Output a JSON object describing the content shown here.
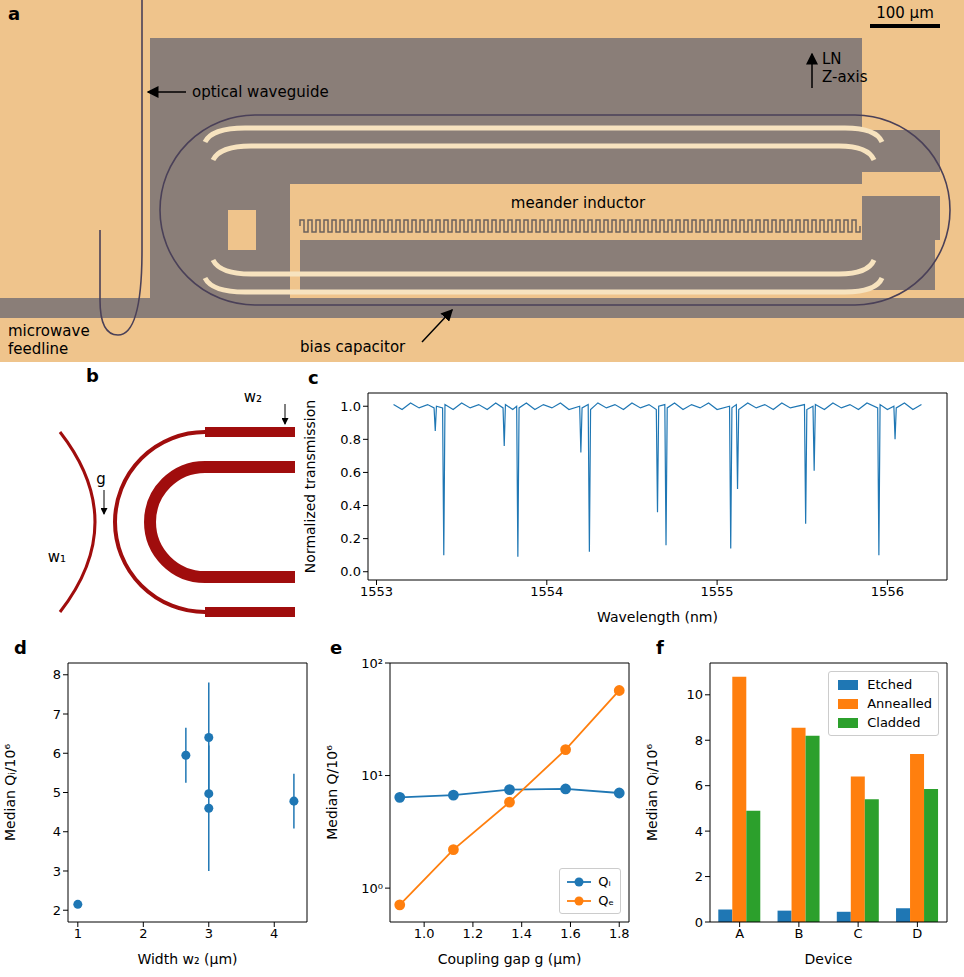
{
  "chart_data": [
    {
      "panel": "a",
      "type": "image",
      "scale_bar": "100 μm",
      "annotations": [
        "optical waveguide",
        "LN Z-axis",
        "meander inductor",
        "microwave feedline",
        "bias capacitor"
      ]
    },
    {
      "panel": "b",
      "type": "diagram",
      "annotations": [
        "g",
        "w₁",
        "w₂"
      ]
    },
    {
      "panel": "c",
      "type": "line",
      "x_label": "Wavelength (nm)",
      "y_label": "Normalized transmission",
      "color": "#1f77b4",
      "x": [
        1553.1,
        1553.15,
        1553.2,
        1553.25,
        1553.3,
        1553.338,
        1553.345,
        1553.352,
        1553.388,
        1553.395,
        1553.402,
        1553.45,
        1553.5,
        1553.55,
        1553.6,
        1553.65,
        1553.7,
        1553.743,
        1553.75,
        1553.757,
        1553.8,
        1553.823,
        1553.83,
        1553.837,
        1553.88,
        1553.93,
        1553.98,
        1554.03,
        1554.08,
        1554.13,
        1554.193,
        1554.2,
        1554.207,
        1554.243,
        1554.25,
        1554.257,
        1554.3,
        1554.35,
        1554.4,
        1554.45,
        1554.5,
        1554.55,
        1554.6,
        1554.643,
        1554.65,
        1554.657,
        1554.693,
        1554.7,
        1554.707,
        1554.75,
        1554.8,
        1554.85,
        1554.9,
        1554.95,
        1555.0,
        1555.073,
        1555.08,
        1555.087,
        1555.113,
        1555.12,
        1555.127,
        1555.18,
        1555.23,
        1555.28,
        1555.33,
        1555.38,
        1555.43,
        1555.513,
        1555.52,
        1555.527,
        1555.563,
        1555.57,
        1555.577,
        1555.63,
        1555.68,
        1555.73,
        1555.78,
        1555.83,
        1555.88,
        1555.943,
        1555.95,
        1555.957,
        1556.0,
        1556.038,
        1556.045,
        1556.052,
        1556.1,
        1556.15,
        1556.2
      ],
      "values": [
        1.01,
        0.98,
        1.02,
        0.99,
        1.01,
        0.99,
        0.85,
        1.0,
        0.99,
        0.1,
        1.01,
        0.98,
        1.02,
        0.99,
        1.01,
        0.98,
        1.02,
        0.99,
        0.76,
        1.01,
        0.98,
        1.0,
        0.09,
        0.99,
        1.02,
        0.98,
        1.01,
        0.99,
        1.02,
        0.98,
        1.0,
        0.72,
        0.99,
        1.01,
        0.12,
        0.98,
        1.02,
        0.99,
        1.01,
        0.98,
        1.02,
        0.99,
        1.01,
        0.98,
        0.36,
        1.0,
        1.01,
        0.16,
        0.99,
        1.02,
        0.98,
        1.01,
        0.99,
        1.02,
        0.98,
        1.0,
        0.14,
        0.99,
        1.01,
        0.5,
        0.98,
        1.02,
        0.99,
        1.01,
        0.98,
        1.02,
        0.99,
        1.01,
        0.29,
        0.98,
        1.0,
        0.61,
        1.01,
        0.98,
        1.02,
        0.99,
        1.01,
        0.98,
        1.02,
        0.99,
        0.1,
        1.01,
        0.98,
        1.0,
        0.8,
        0.99,
        1.02,
        0.98,
        1.01
      ],
      "xlim": [
        1552.95,
        1556.35
      ],
      "xticks": [
        1553,
        1554,
        1555,
        1556
      ],
      "ylim": [
        -0.05,
        1.08
      ],
      "yticks": [
        {
          "value": 0,
          "label": "0.0"
        },
        {
          "value": 0.2,
          "label": "0.2"
        },
        {
          "value": 0.4,
          "label": "0.4"
        },
        {
          "value": 0.6,
          "label": "0.6"
        },
        {
          "value": 0.8,
          "label": "0.8"
        },
        {
          "value": 1,
          "label": "1.0"
        }
      ]
    },
    {
      "panel": "d",
      "type": "scatter",
      "x_label": "Width w₂ (μm)",
      "y_label": "Median Qᵢ/10⁶",
      "color": "#1f77b4",
      "marker": "circle",
      "x": [
        1.0,
        2.65,
        3.0,
        3.0,
        3.0,
        4.3
      ],
      "values": [
        2.15,
        5.95,
        6.4,
        4.97,
        4.6,
        4.78
      ],
      "errors": [
        null,
        0.7,
        1.4,
        null,
        1.6,
        0.7
      ],
      "xlim": [
        0.85,
        4.5
      ],
      "xticks": [
        1,
        2,
        3,
        4
      ],
      "ylim": [
        1.7,
        8.3
      ],
      "yticks": [
        2,
        3,
        4,
        5,
        6,
        7,
        8
      ]
    },
    {
      "panel": "e",
      "type": "line",
      "x_label": "Coupling gap g (μm)",
      "y_label": "Median Q/10⁶",
      "log": "y",
      "marker": "circle",
      "legend": "lower right",
      "x": [
        0.9,
        1.12,
        1.35,
        1.58,
        1.8
      ],
      "series": [
        {
          "name": "Qᵢ",
          "color": "#1f77b4",
          "values": [
            6.4,
            6.7,
            7.5,
            7.6,
            7.0
          ]
        },
        {
          "name": "Qₑ",
          "color": "#ff7f0e",
          "values": [
            0.71,
            2.2,
            5.8,
            17,
            57
          ]
        }
      ],
      "xlim": [
        0.86,
        1.84
      ],
      "xticks": [
        {
          "value": 1,
          "label": "1.0"
        },
        1.2,
        1.4,
        1.6,
        1.8
      ],
      "ylim": [
        0.5,
        100
      ],
      "yticks": [
        {
          "value": 1,
          "label": "10⁰"
        },
        {
          "value": 10,
          "label": "10¹"
        },
        {
          "value": 100,
          "label": "10²"
        }
      ]
    },
    {
      "panel": "f",
      "type": "bar",
      "x_label": "Device",
      "y_label": "Median Qᵢ/10⁶",
      "legend": "upper right",
      "categories": [
        "A",
        "B",
        "C",
        "D"
      ],
      "series": [
        {
          "name": "Etched",
          "color": "#1f77b4",
          "values": [
            0.55,
            0.5,
            0.45,
            0.6
          ]
        },
        {
          "name": "Annealled",
          "color": "#ff7f0e",
          "values": [
            10.8,
            8.55,
            6.4,
            7.4
          ]
        },
        {
          "name": "Cladded",
          "color": "#2ca02c",
          "values": [
            4.9,
            8.2,
            5.4,
            5.85
          ]
        }
      ],
      "ylim": [
        0,
        11.4
      ],
      "yticks": [
        0,
        2,
        4,
        6,
        8,
        10
      ]
    }
  ]
}
